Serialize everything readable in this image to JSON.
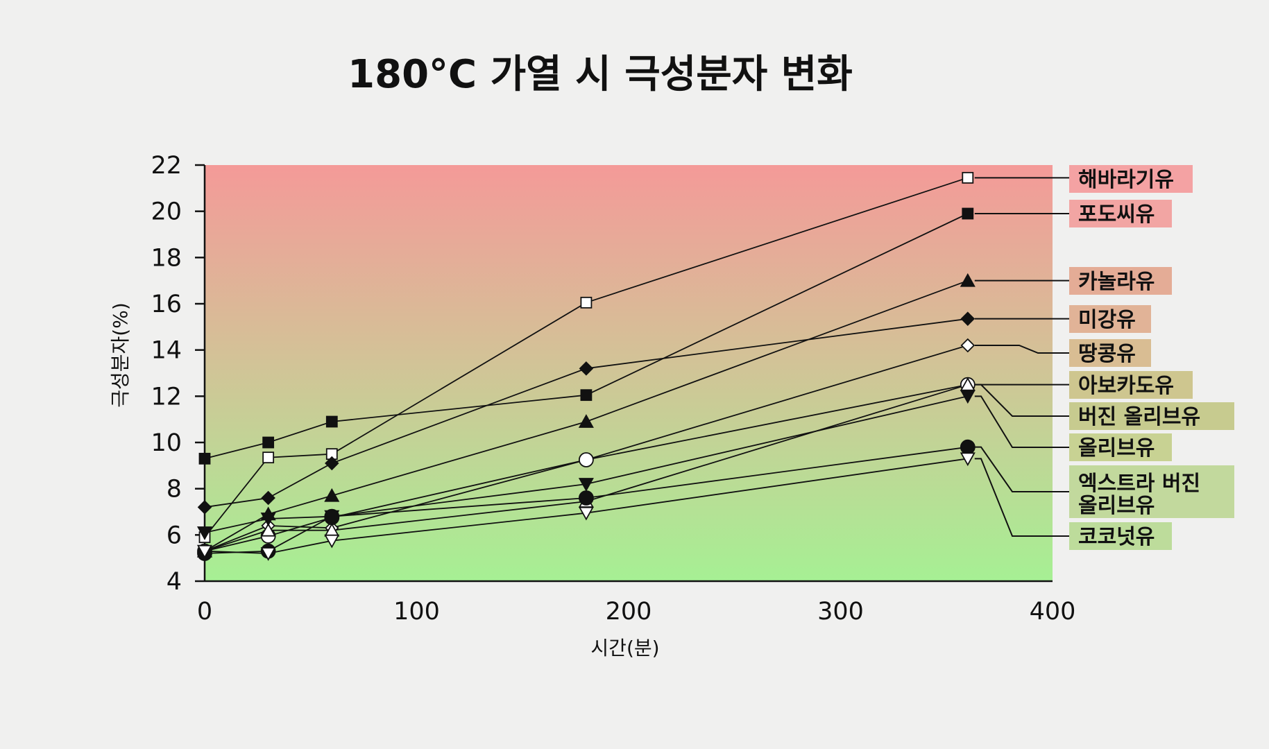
{
  "chart_data": {
    "type": "line",
    "title": "180°C 가열 시 극성분자 변화",
    "xlabel": "시간(분)",
    "ylabel": "극성분자(%)",
    "xlim": [
      0,
      400
    ],
    "ylim": [
      4,
      22
    ],
    "xticks": [
      0,
      100,
      200,
      300,
      400
    ],
    "yticks": [
      4,
      6,
      8,
      10,
      12,
      14,
      16,
      18,
      20,
      22
    ],
    "grid": false,
    "legend_position": "right",
    "background_gradient": {
      "top": "#f49a98",
      "bottom": "#a6f094"
    },
    "series": [
      {
        "name": "해바라기유",
        "marker": "square-open",
        "x": [
          0,
          30,
          60,
          180,
          360
        ],
        "y": [
          5.9,
          9.35,
          9.5,
          16.05,
          21.45
        ]
      },
      {
        "name": "포도씨유",
        "marker": "square-filled",
        "x": [
          0,
          30,
          60,
          180,
          360
        ],
        "y": [
          9.3,
          10.0,
          10.9,
          12.05,
          19.9
        ]
      },
      {
        "name": "카놀라유",
        "marker": "triangle-filled",
        "x": [
          0,
          30,
          60,
          180,
          360
        ],
        "y": [
          5.3,
          6.9,
          7.7,
          10.9,
          17.0
        ]
      },
      {
        "name": "미강유",
        "marker": "diamond-filled",
        "x": [
          0,
          30,
          60,
          180,
          360
        ],
        "y": [
          7.2,
          7.6,
          9.1,
          13.2,
          15.35
        ]
      },
      {
        "name": "땅콩유",
        "marker": "diamond-open",
        "x": [
          0,
          30,
          60,
          180,
          360
        ],
        "y": [
          5.3,
          6.4,
          6.3,
          9.25,
          14.2
        ]
      },
      {
        "name": "아보카도유",
        "marker": "circle-open",
        "x": [
          0,
          30,
          60,
          180,
          360
        ],
        "y": [
          5.3,
          5.95,
          6.75,
          9.25,
          12.5
        ]
      },
      {
        "name": "버진 올리브유",
        "marker": "triangle-open",
        "x": [
          0,
          30,
          60,
          180,
          360
        ],
        "y": [
          5.3,
          6.2,
          6.2,
          7.45,
          12.5
        ]
      },
      {
        "name": "올리브유",
        "marker": "triangle-down-filled",
        "x": [
          0,
          30,
          60,
          180,
          360
        ],
        "y": [
          6.1,
          6.7,
          6.8,
          8.2,
          12.0
        ]
      },
      {
        "name": "엑스트라 버진 올리브유",
        "marker": "circle-filled",
        "x": [
          0,
          30,
          60,
          180,
          360
        ],
        "y": [
          5.2,
          5.3,
          6.8,
          7.6,
          9.8
        ]
      },
      {
        "name": "코코넛유",
        "marker": "triangle-down-open",
        "x": [
          0,
          30,
          60,
          180,
          360
        ],
        "y": [
          5.3,
          5.2,
          5.75,
          6.95,
          9.3
        ]
      }
    ],
    "legend_colors": [
      "#f4a2a3",
      "#f2a5a3",
      "#e4ac96",
      "#e1b397",
      "#d9bd93",
      "#cec68f",
      "#c7cb8f",
      "#c8d293",
      "#c2d99d",
      "#bddc9b"
    ]
  }
}
